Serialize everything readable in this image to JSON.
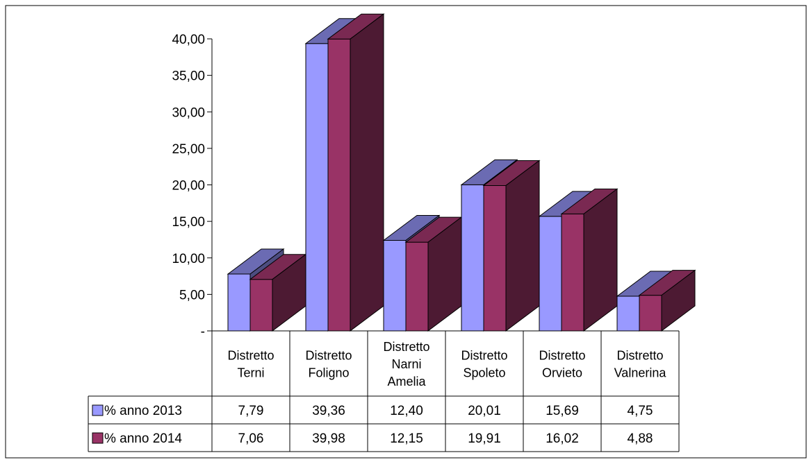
{
  "chart_data": {
    "type": "bar",
    "categories": [
      [
        "Distretto",
        "Terni"
      ],
      [
        "Distretto",
        "Foligno"
      ],
      [
        "Distretto",
        "Narni",
        "Amelia"
      ],
      [
        "Distretto",
        "Spoleto"
      ],
      [
        "Distretto",
        "Orvieto"
      ],
      [
        "Distretto",
        "Valnerina"
      ]
    ],
    "series": [
      {
        "name": "% anno 2013",
        "values": [
          7.79,
          39.36,
          12.4,
          20.01,
          15.69,
          4.75
        ],
        "labels": [
          "7,79",
          "39,36",
          "12,40",
          "20,01",
          "15,69",
          "4,75"
        ],
        "color": "#9999ff",
        "top_color": "#6b6bb3",
        "side_color": "#4d4d80"
      },
      {
        "name": "% anno 2014",
        "values": [
          7.06,
          39.98,
          12.15,
          19.91,
          16.02,
          4.88
        ],
        "labels": [
          "7,06",
          "39,98",
          "12,15",
          "19,91",
          "16,02",
          "4,88"
        ],
        "color": "#993366",
        "top_color": "#7a2952",
        "side_color": "#4d1a33"
      }
    ],
    "y_ticks": [
      {
        "value": 0,
        "label": "-"
      },
      {
        "value": 5,
        "label": "5,00"
      },
      {
        "value": 10,
        "label": "10,00"
      },
      {
        "value": 15,
        "label": "15,00"
      },
      {
        "value": 20,
        "label": "20,00"
      },
      {
        "value": 25,
        "label": "25,00"
      },
      {
        "value": 30,
        "label": "30,00"
      },
      {
        "value": 35,
        "label": "35,00"
      },
      {
        "value": 40,
        "label": "40,00"
      }
    ],
    "ylim": [
      0,
      40
    ],
    "legend": "data-table",
    "grid": false,
    "title": "",
    "xlabel": "",
    "ylabel": ""
  }
}
